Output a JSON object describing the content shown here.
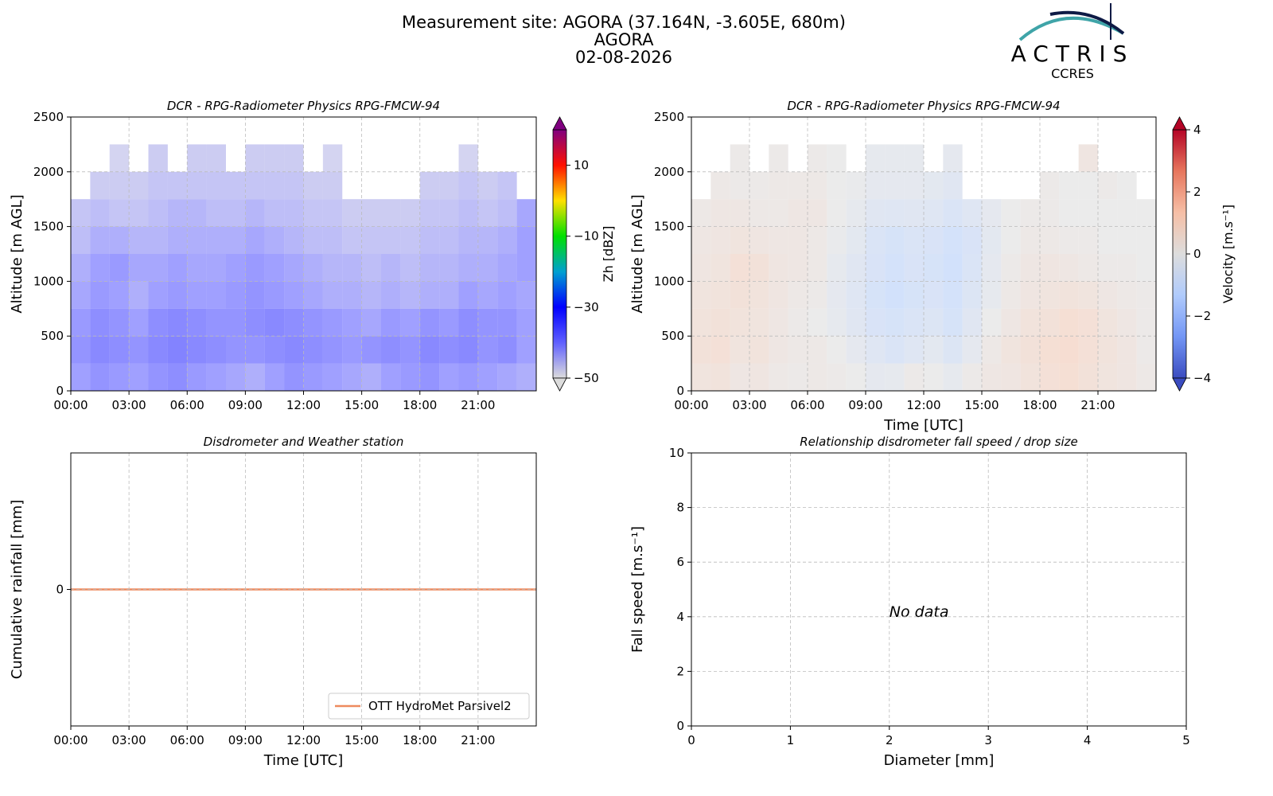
{
  "header": {
    "title_lines": [
      "Measurement site: AGORA (37.164N, -3.605E, 680m)",
      "AGORA",
      "02-08-2026"
    ],
    "logo": {
      "name": "ACTRIS",
      "sub": "CCRES"
    }
  },
  "chart_data": [
    {
      "type": "heatmap",
      "title": "DCR - RPG-Radiometer Physics RPG-FMCW-94",
      "ylabel": "Altitude [m AGL]",
      "xlim": [
        0,
        24
      ],
      "xticks": [
        {
          "value": 0,
          "label": "00:00"
        },
        {
          "value": 3,
          "label": "03:00"
        },
        {
          "value": 6,
          "label": "06:00"
        },
        {
          "value": 9,
          "label": "09:00"
        },
        {
          "value": 12,
          "label": "12:00"
        },
        {
          "value": 15,
          "label": "15:00"
        },
        {
          "value": 18,
          "label": "18:00"
        },
        {
          "value": 21,
          "label": "21:00"
        }
      ],
      "ylim": [
        0,
        2500
      ],
      "yticks": [
        0,
        500,
        1000,
        1500,
        2000,
        2500
      ],
      "grid": true,
      "xedges": [
        0,
        1,
        2,
        3,
        4,
        5,
        6,
        7,
        8,
        9,
        10,
        11,
        12,
        13,
        14,
        15,
        16,
        17,
        18,
        19,
        20,
        21,
        22,
        23,
        24
      ],
      "yedges": [
        0,
        250,
        500,
        750,
        1000,
        1250,
        1500,
        1750,
        2000,
        2250
      ],
      "values": [
        [
          -40,
          -38,
          -39,
          -40,
          -38,
          -37,
          -39,
          -40,
          -41,
          -42,
          -40,
          -38,
          -39,
          -40,
          -41,
          -42,
          -40,
          -39,
          -38,
          -40,
          -39,
          -40,
          -41,
          -42
        ],
        [
          -38,
          -36,
          -37,
          -38,
          -36,
          -35,
          -36,
          -37,
          -38,
          -38,
          -37,
          -36,
          -37,
          -38,
          -39,
          -38,
          -37,
          -38,
          -36,
          -37,
          -36,
          -38,
          -37,
          -40
        ],
        [
          -39,
          -37,
          -38,
          -40,
          -37,
          -36,
          -37,
          -38,
          -38,
          -37,
          -36,
          -37,
          -38,
          -39,
          -40,
          -41,
          -39,
          -40,
          -38,
          -39,
          -37,
          -38,
          -38,
          -40
        ],
        [
          -41,
          -39,
          -40,
          -42,
          -40,
          -39,
          -40,
          -40,
          -39,
          -38,
          -39,
          -40,
          -41,
          -42,
          -42,
          -43,
          -42,
          -43,
          -42,
          -42,
          -40,
          -41,
          -40,
          -41
        ],
        [
          -42,
          -40,
          -39,
          -41,
          -41,
          -40,
          -41,
          -41,
          -40,
          -39,
          -40,
          -41,
          -42,
          -43,
          -43,
          -44,
          -43,
          -44,
          -43,
          -43,
          -42,
          -42,
          -41,
          -40
        ],
        [
          -44,
          -42,
          -42,
          -43,
          -43,
          -42,
          -42,
          -42,
          -42,
          -41,
          -42,
          -43,
          -44,
          -44,
          -45,
          -45,
          -45,
          -45,
          -44,
          -44,
          -43,
          -43,
          -42,
          -40
        ],
        [
          -45,
          -44,
          -45,
          -45,
          -44,
          -43,
          -43,
          -44,
          -44,
          -43,
          -44,
          -44,
          -45,
          -45,
          -46,
          -46,
          -46,
          -46,
          -45,
          -45,
          -44,
          -45,
          -44,
          -41
        ],
        [
          null,
          -46,
          -46,
          -46,
          -45,
          -45,
          -45,
          -45,
          -45,
          -45,
          -45,
          -45,
          -46,
          -46,
          null,
          null,
          null,
          null,
          -46,
          -46,
          -45,
          -46,
          -45,
          null
        ],
        [
          null,
          null,
          -47,
          null,
          -46,
          null,
          -46,
          -46,
          null,
          -46,
          -46,
          -46,
          null,
          -47,
          null,
          null,
          null,
          null,
          null,
          null,
          -47,
          null,
          null,
          null
        ]
      ],
      "colorbar": {
        "label": "Zh [dBZ]",
        "clim": [
          -50,
          20
        ],
        "colormap": [
          "#dcdcdc",
          "#6060ff",
          "#0000ff",
          "#00a0d0",
          "#00e000",
          "#ffe000",
          "#ff1000",
          "#800080"
        ],
        "ticks": [
          {
            "value": -50,
            "label": "−50"
          },
          {
            "value": -30,
            "label": "−30"
          },
          {
            "value": -10,
            "label": "−10"
          },
          10
        ]
      }
    },
    {
      "type": "heatmap",
      "title": "DCR - RPG-Radiometer Physics RPG-FMCW-94",
      "ylabel": "Altitude [m AGL]",
      "xlabel": "Time [UTC]",
      "xlim": [
        0,
        24
      ],
      "xticks": [
        {
          "value": 0,
          "label": "00:00"
        },
        {
          "value": 3,
          "label": "03:00"
        },
        {
          "value": 6,
          "label": "06:00"
        },
        {
          "value": 9,
          "label": "09:00"
        },
        {
          "value": 12,
          "label": "12:00"
        },
        {
          "value": 15,
          "label": "15:00"
        },
        {
          "value": 18,
          "label": "18:00"
        },
        {
          "value": 21,
          "label": "21:00"
        }
      ],
      "ylim": [
        0,
        2500
      ],
      "yticks": [
        0,
        500,
        1000,
        1500,
        2000,
        2500
      ],
      "grid": true,
      "xedges": [
        0,
        1,
        2,
        3,
        4,
        5,
        6,
        7,
        8,
        9,
        10,
        11,
        12,
        13,
        14,
        15,
        16,
        17,
        18,
        19,
        20,
        21,
        22,
        23,
        24
      ],
      "yedges": [
        0,
        250,
        500,
        750,
        1000,
        1250,
        1500,
        1750,
        2000,
        2250
      ],
      "values": [
        [
          0.5,
          0.6,
          0.3,
          0.4,
          0.2,
          0.1,
          0.2,
          0.1,
          0.0,
          -0.3,
          -0.2,
          0.1,
          0.0,
          -0.2,
          0.1,
          0.3,
          0.4,
          0.6,
          0.8,
          0.9,
          0.7,
          0.5,
          0.4,
          0.2
        ],
        [
          0.7,
          0.8,
          0.5,
          0.6,
          0.3,
          0.2,
          0.2,
          0.0,
          -0.3,
          -0.6,
          -0.8,
          -0.6,
          -0.4,
          -0.7,
          -0.3,
          0.2,
          0.5,
          0.7,
          0.9,
          1.0,
          0.8,
          0.6,
          0.4,
          0.1
        ],
        [
          0.6,
          0.7,
          0.6,
          0.5,
          0.3,
          0.1,
          0.0,
          -0.2,
          -0.5,
          -0.9,
          -1.0,
          -0.8,
          -0.7,
          -1.0,
          -0.5,
          0.0,
          0.3,
          0.6,
          0.7,
          0.9,
          0.8,
          0.5,
          0.3,
          0.1
        ],
        [
          0.5,
          0.6,
          0.7,
          0.6,
          0.4,
          0.2,
          0.1,
          -0.3,
          -0.6,
          -1.0,
          -1.2,
          -1.0,
          -0.9,
          -1.1,
          -0.7,
          -0.2,
          0.2,
          0.4,
          0.5,
          0.6,
          0.5,
          0.3,
          0.2,
          0.1
        ],
        [
          0.4,
          0.5,
          0.8,
          0.7,
          0.4,
          0.3,
          0.2,
          -0.2,
          -0.5,
          -0.9,
          -1.1,
          -0.9,
          -1.0,
          -1.2,
          -0.8,
          -0.3,
          0.1,
          0.3,
          0.4,
          0.3,
          0.2,
          0.1,
          0.1,
          0.0
        ],
        [
          0.3,
          0.4,
          0.5,
          0.4,
          0.3,
          0.3,
          0.2,
          -0.1,
          -0.4,
          -0.8,
          -1.0,
          -0.8,
          -0.9,
          -1.1,
          -0.9,
          -0.4,
          0.0,
          0.2,
          0.2,
          0.1,
          0.1,
          0.0,
          0.0,
          0.0
        ],
        [
          0.2,
          0.3,
          0.3,
          0.2,
          0.2,
          0.3,
          0.3,
          0.0,
          -0.2,
          -0.5,
          -0.6,
          -0.5,
          -0.6,
          -0.8,
          -0.6,
          -0.3,
          0.0,
          0.1,
          0.1,
          0.0,
          0.0,
          0.0,
          0.0,
          0.0
        ],
        [
          null,
          0.2,
          0.1,
          0.1,
          0.2,
          0.2,
          0.2,
          0.0,
          -0.1,
          -0.3,
          -0.3,
          -0.3,
          -0.4,
          -0.5,
          null,
          null,
          null,
          null,
          0.1,
          0.0,
          0.0,
          0.1,
          0.0,
          null
        ],
        [
          null,
          null,
          0.1,
          null,
          0.1,
          null,
          0.1,
          0.0,
          null,
          -0.2,
          -0.2,
          -0.2,
          null,
          -0.3,
          null,
          null,
          null,
          null,
          null,
          null,
          0.4,
          null,
          null,
          null
        ]
      ],
      "colorbar": {
        "label": "Velocity [m.s⁻¹]",
        "clim": [
          -4,
          4
        ],
        "colormap": [
          "#3b4cc0",
          "#7396f5",
          "#b0cbfc",
          "#dddddd",
          "#f6bfa6",
          "#e7765d",
          "#b40426"
        ],
        "ticks": [
          {
            "value": -4,
            "label": "−4"
          },
          {
            "value": -2,
            "label": "−2"
          },
          0,
          2,
          4
        ]
      }
    },
    {
      "type": "line",
      "title": "Disdrometer and Weather station",
      "ylabel": "Cumulative rainfall [mm]",
      "xlabel": "Time [UTC]",
      "xlim": [
        0,
        24
      ],
      "xticks": [
        {
          "value": 0,
          "label": "00:00"
        },
        {
          "value": 3,
          "label": "03:00"
        },
        {
          "value": 6,
          "label": "06:00"
        },
        {
          "value": 9,
          "label": "09:00"
        },
        {
          "value": 12,
          "label": "12:00"
        },
        {
          "value": 15,
          "label": "15:00"
        },
        {
          "value": 18,
          "label": "18:00"
        },
        {
          "value": 21,
          "label": "21:00"
        }
      ],
      "ylim": [
        -1,
        1
      ],
      "yticks": [
        0
      ],
      "grid": true,
      "legend": "lower right",
      "series": [
        {
          "name": "OTT HydroMet Parsivel2",
          "color": "#ee8a5e",
          "x": [
            0,
            24
          ],
          "values": [
            0,
            0
          ]
        }
      ]
    },
    {
      "type": "scatter",
      "title": "Relationship disdrometer fall speed / drop size",
      "ylabel": "Fall speed [m.s⁻¹]",
      "xlabel": "Diameter [mm]",
      "xlim": [
        0,
        5
      ],
      "xticks": [
        0,
        1,
        2,
        3,
        4,
        5
      ],
      "ylim": [
        0,
        10
      ],
      "yticks": [
        0,
        2,
        4,
        6,
        8,
        10
      ],
      "grid": true,
      "x": [],
      "values": [],
      "annotation": {
        "text": "No data",
        "x": 2,
        "y": 4
      }
    }
  ]
}
